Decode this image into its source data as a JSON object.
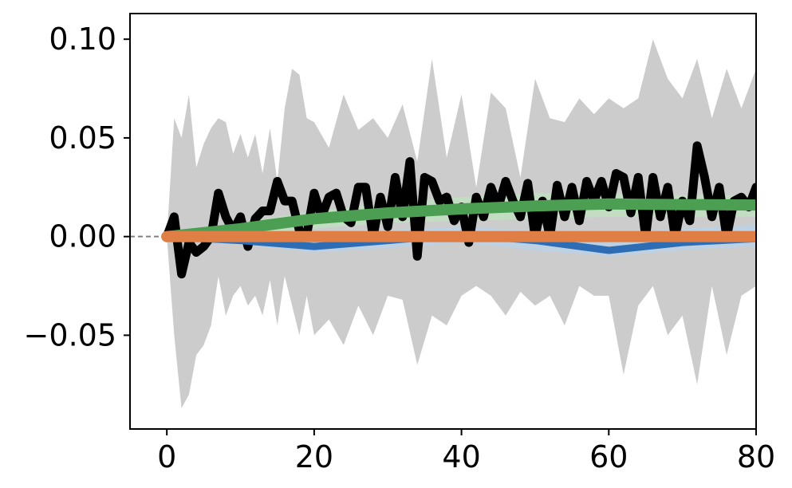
{
  "chart_data": {
    "type": "line",
    "title": "",
    "xlabel": "",
    "ylabel": "",
    "xlim": [
      -5,
      80
    ],
    "ylim": [
      -0.0975,
      0.113
    ],
    "grid": false,
    "legend": "none",
    "x_ticks": [
      0,
      20,
      40,
      60,
      80
    ],
    "x_tick_labels": [
      "0",
      "20",
      "40",
      "60",
      "80"
    ],
    "y_ticks": [
      -0.05,
      0,
      0.05,
      0.1
    ],
    "y_tick_labels": [
      "−0.05",
      "0.00",
      "0.05",
      "0.10"
    ],
    "reference_line": {
      "y": 0,
      "style": "dashed",
      "color": "#808080"
    },
    "bands": [
      {
        "color": "#cccccc",
        "x": [
          0,
          1,
          2,
          3,
          4,
          5,
          6,
          7,
          8,
          9,
          10,
          11,
          12,
          13,
          14,
          15,
          16,
          17,
          18,
          19,
          20,
          22,
          24,
          26,
          28,
          30,
          32,
          34,
          36,
          38,
          40,
          42,
          44,
          46,
          48,
          50,
          52,
          54,
          56,
          58,
          60,
          62,
          64,
          66,
          68,
          70,
          72,
          74,
          76,
          78,
          80
        ],
        "upper": [
          0,
          0.06,
          0.05,
          0.072,
          0.035,
          0.047,
          0.055,
          0.06,
          0.058,
          0.042,
          0.052,
          0.04,
          0.052,
          0.032,
          0.055,
          0.028,
          0.065,
          0.085,
          0.082,
          0.06,
          0.058,
          0.045,
          0.072,
          0.054,
          0.06,
          0.05,
          0.067,
          0.038,
          0.09,
          0.04,
          0.072,
          0.025,
          0.073,
          0.065,
          0.03,
          0.08,
          0.06,
          0.058,
          0.07,
          0.062,
          0.07,
          0.065,
          0.07,
          0.1,
          0.08,
          0.07,
          0.09,
          0.06,
          0.085,
          0.065,
          0.085
        ],
        "lower": [
          0,
          -0.05,
          -0.087,
          -0.08,
          -0.06,
          -0.055,
          -0.045,
          -0.02,
          -0.04,
          -0.03,
          -0.025,
          -0.035,
          -0.03,
          -0.04,
          -0.022,
          -0.045,
          -0.02,
          -0.035,
          -0.05,
          -0.03,
          -0.05,
          -0.042,
          -0.055,
          -0.035,
          -0.05,
          -0.03,
          -0.032,
          -0.065,
          -0.04,
          -0.045,
          -0.03,
          -0.025,
          -0.03,
          -0.04,
          -0.028,
          -0.035,
          -0.03,
          -0.045,
          -0.025,
          -0.03,
          -0.03,
          -0.07,
          -0.035,
          -0.025,
          -0.05,
          -0.04,
          -0.075,
          -0.025,
          -0.06,
          -0.03,
          -0.025
        ]
      },
      {
        "color": "#bdd1e2",
        "x": [
          0,
          10,
          20,
          30,
          40,
          50,
          60,
          70,
          80
        ],
        "upper": [
          0,
          0.002,
          0.002,
          0.003,
          0.005,
          0.003,
          0.002,
          0.004,
          0.006
        ],
        "lower": [
          0,
          -0.004,
          -0.008,
          -0.006,
          -0.003,
          -0.007,
          -0.01,
          -0.007,
          -0.005
        ]
      },
      {
        "color": "#c3ddc3",
        "x": [
          0,
          10,
          20,
          30,
          40,
          50,
          60,
          70,
          80
        ],
        "upper": [
          0,
          0.007,
          0.013,
          0.017,
          0.02,
          0.022,
          0.022,
          0.021,
          0.021
        ],
        "lower": [
          0,
          0.001,
          0.004,
          0.007,
          0.008,
          0.009,
          0.01,
          0.01,
          0.01
        ]
      }
    ],
    "series": [
      {
        "color": "#000000",
        "x": [
          0,
          1,
          2,
          3,
          4,
          5,
          6,
          7,
          8,
          9,
          10,
          11,
          12,
          13,
          14,
          15,
          16,
          17,
          18,
          19,
          20,
          21,
          22,
          23,
          24,
          25,
          26,
          27,
          28,
          29,
          30,
          31,
          32,
          33,
          34,
          35,
          36,
          37,
          38,
          39,
          40,
          41,
          42,
          43,
          44,
          45,
          46,
          47,
          48,
          49,
          50,
          51,
          52,
          53,
          54,
          55,
          56,
          57,
          58,
          59,
          60,
          61,
          62,
          63,
          64,
          65,
          66,
          67,
          68,
          69,
          70,
          71,
          72,
          73,
          74,
          75,
          76,
          77,
          78,
          79,
          80
        ],
        "values": [
          0,
          0.01,
          -0.019,
          -0.003,
          -0.008,
          -0.005,
          0.0,
          0.022,
          0.01,
          0.003,
          0.01,
          -0.005,
          0.009,
          0.013,
          0.013,
          0.028,
          0.018,
          0.018,
          0.003,
          0.001,
          0.022,
          0.01,
          0.02,
          0.022,
          0.01,
          0.007,
          0.025,
          0.025,
          0.0,
          0.02,
          0.005,
          0.03,
          0.01,
          0.038,
          -0.01,
          0.03,
          0.028,
          0.018,
          0.02,
          0.008,
          0.015,
          -0.003,
          0.02,
          0.01,
          0.025,
          0.015,
          0.028,
          0.018,
          0.01,
          0.027,
          0.0,
          0.018,
          0.0,
          0.026,
          0.01,
          0.025,
          0.008,
          0.028,
          0.018,
          0.028,
          0.015,
          0.032,
          0.03,
          0.012,
          0.03,
          0.0,
          0.03,
          0.01,
          0.025,
          0.0,
          0.018,
          0.008,
          0.046,
          0.03,
          0.01,
          0.025,
          0.0,
          0.018,
          0.02,
          0.015,
          0.025
        ]
      },
      {
        "color": "#2e6db4",
        "x": [
          0,
          10,
          20,
          30,
          40,
          50,
          60,
          70,
          80
        ],
        "values": [
          0,
          -0.002,
          -0.005,
          -0.002,
          0.001,
          -0.002,
          -0.007,
          -0.003,
          -0.001
        ]
      },
      {
        "color": "#4c9e52",
        "x": [
          0,
          10,
          20,
          30,
          40,
          50,
          60,
          70,
          80
        ],
        "values": [
          0,
          0.004,
          0.009,
          0.012,
          0.014,
          0.0155,
          0.0165,
          0.0162,
          0.016
        ]
      },
      {
        "color": "#e07f45",
        "x": [
          0,
          10,
          20,
          30,
          40,
          50,
          60,
          70,
          80
        ],
        "values": [
          0,
          0,
          0,
          0,
          0,
          0,
          0,
          0,
          0
        ]
      }
    ]
  }
}
